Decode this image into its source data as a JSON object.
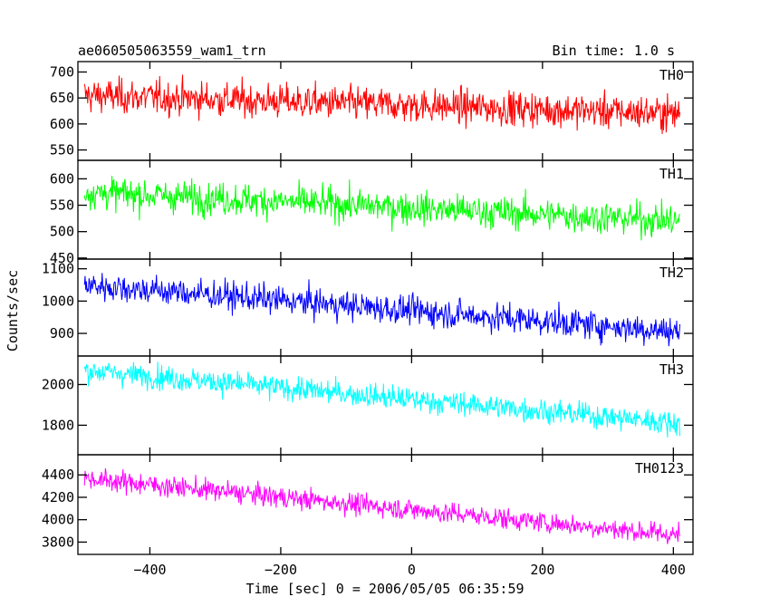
{
  "header": {
    "title": "ae060505063559_wam1_trn",
    "bin_time": "Bin time: 1.0 s"
  },
  "chart_data": {
    "type": "line",
    "title": "ae060505063559_wam1_trn",
    "xlabel": "Time [sec] 0 = 2006/05/05 06:35:59",
    "ylabel": "Counts/sec",
    "xlim": [
      -510,
      430
    ],
    "x_ticks": [
      -400,
      -200,
      0,
      200,
      400
    ],
    "x_range": [
      -500,
      410
    ],
    "grid": false,
    "panels": [
      {
        "name": "TH0",
        "color": "#ff0000",
        "ylim": [
          530,
          720
        ],
        "y_ticks": [
          550,
          600,
          650,
          700
        ],
        "trend": [
          -500,
          655,
          410,
          620
        ],
        "noise": 28
      },
      {
        "name": "TH1",
        "color": "#00ff00",
        "ylim": [
          448,
          635
        ],
        "y_ticks": [
          450,
          500,
          550,
          600
        ],
        "trend": [
          -500,
          575,
          410,
          520
        ],
        "noise": 26
      },
      {
        "name": "TH2",
        "color": "#0000ff",
        "ylim": [
          830,
          1130
        ],
        "y_ticks": [
          900,
          1000,
          1100
        ],
        "trend": [
          -500,
          1050,
          410,
          905
        ],
        "noise": 38
      },
      {
        "name": "TH3",
        "color": "#00ffff",
        "ylim": [
          1655,
          2140
        ],
        "y_ticks": [
          1800,
          2000
        ],
        "trend": [
          -500,
          2070,
          410,
          1810
        ],
        "noise": 50
      },
      {
        "name": "TH0123",
        "color": "#ff00ff",
        "ylim": [
          3690,
          4580
        ],
        "y_ticks": [
          3800,
          4000,
          4200,
          4400
        ],
        "trend": [
          -500,
          4370,
          410,
          3860
        ],
        "noise": 80
      }
    ]
  }
}
